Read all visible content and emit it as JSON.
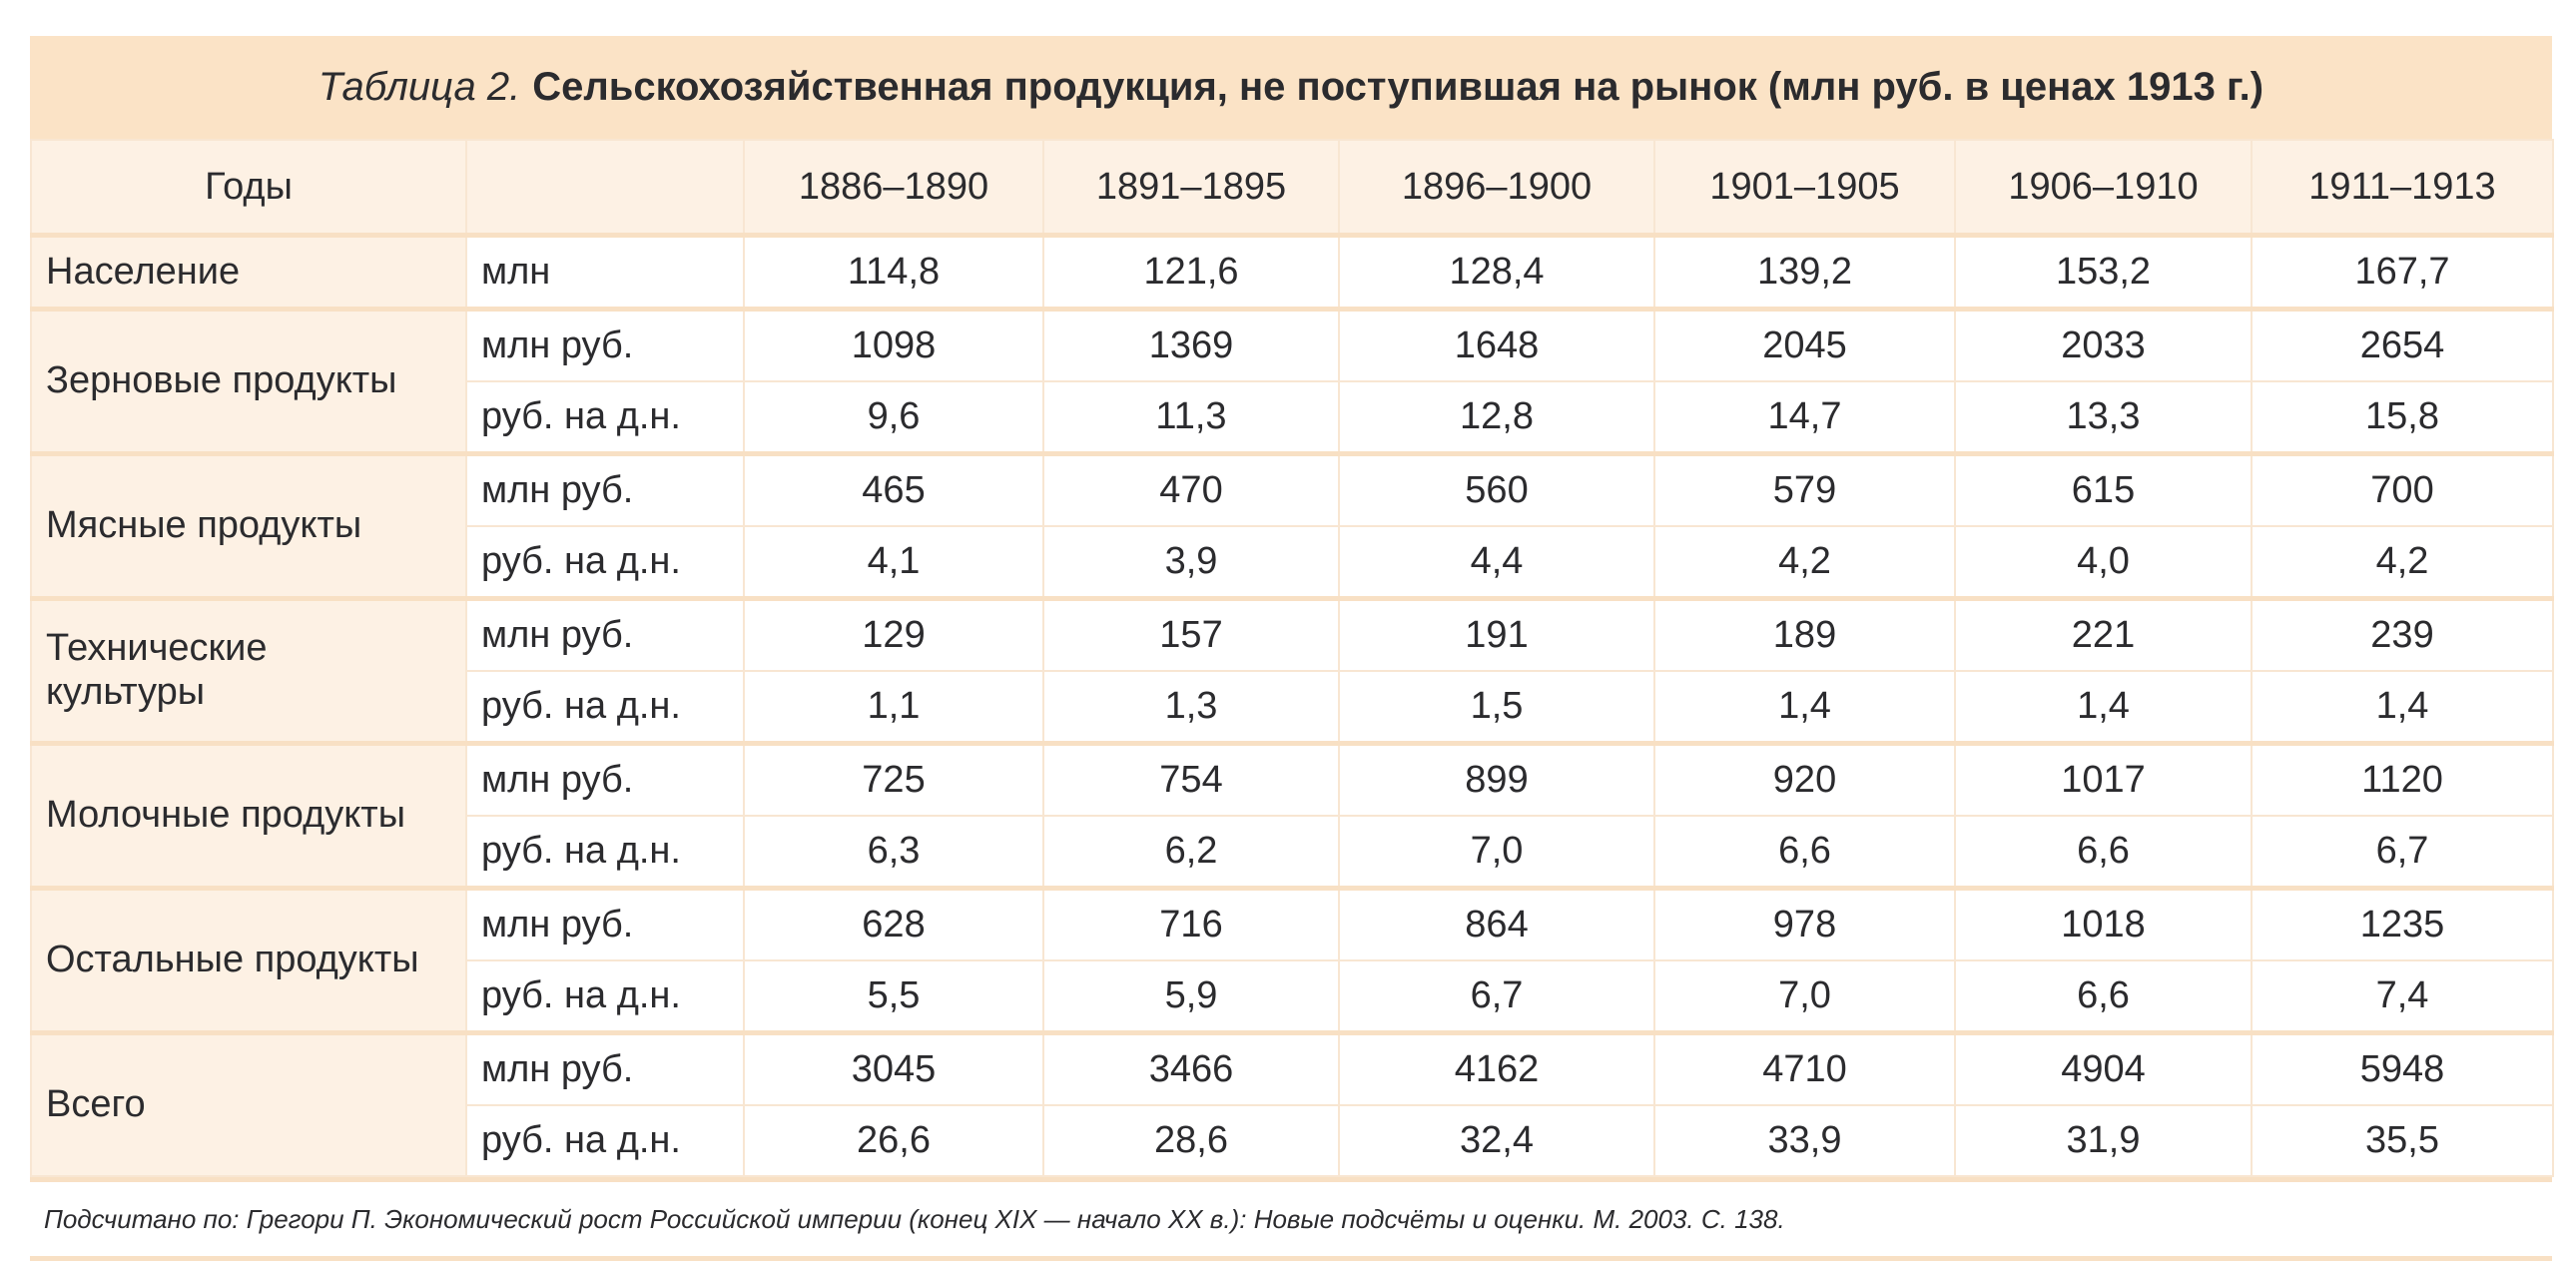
{
  "title": {
    "prefix": "Таблица 2.",
    "text": "Сельскохозяйственная продукция, не поступившая на рынок (млн руб. в ценах 1913 г.)"
  },
  "header": {
    "label": "Годы",
    "unit": "",
    "periods": [
      "1886–1890",
      "1891–1895",
      "1896–1900",
      "1901–1905",
      "1906–1910",
      "1911–1913"
    ]
  },
  "rows": [
    {
      "label": "Население",
      "lines": [
        {
          "unit": "млн",
          "values": [
            "114,8",
            "121,6",
            "128,4",
            "139,2",
            "153,2",
            "167,7"
          ]
        }
      ]
    },
    {
      "label": "Зерновые продукты",
      "lines": [
        {
          "unit": "млн руб.",
          "values": [
            "1098",
            "1369",
            "1648",
            "2045",
            "2033",
            "2654"
          ]
        },
        {
          "unit": "руб. на д.н.",
          "values": [
            "9,6",
            "11,3",
            "12,8",
            "14,7",
            "13,3",
            "15,8"
          ]
        }
      ]
    },
    {
      "label": "Мясные продукты",
      "lines": [
        {
          "unit": "млн руб.",
          "values": [
            "465",
            "470",
            "560",
            "579",
            "615",
            "700"
          ]
        },
        {
          "unit": "руб. на д.н.",
          "values": [
            "4,1",
            "3,9",
            "4,4",
            "4,2",
            "4,0",
            "4,2"
          ]
        }
      ]
    },
    {
      "label": "Технические культуры",
      "lines": [
        {
          "unit": "млн руб.",
          "values": [
            "129",
            "157",
            "191",
            "189",
            "221",
            "239"
          ]
        },
        {
          "unit": "руб. на д.н.",
          "values": [
            "1,1",
            "1,3",
            "1,5",
            "1,4",
            "1,4",
            "1,4"
          ]
        }
      ]
    },
    {
      "label": "Молочные продукты",
      "lines": [
        {
          "unit": "млн руб.",
          "values": [
            "725",
            "754",
            "899",
            "920",
            "1017",
            "1120"
          ]
        },
        {
          "unit": "руб. на д.н.",
          "values": [
            "6,3",
            "6,2",
            "7,0",
            "6,6",
            "6,6",
            "6,7"
          ]
        }
      ]
    },
    {
      "label": "Остальные продукты",
      "lines": [
        {
          "unit": "млн руб.",
          "values": [
            "628",
            "716",
            "864",
            "978",
            "1018",
            "1235"
          ]
        },
        {
          "unit": "руб. на д.н.",
          "values": [
            "5,5",
            "5,9",
            "6,7",
            "7,0",
            "6,6",
            "7,4"
          ]
        }
      ]
    },
    {
      "label": "Всего",
      "lines": [
        {
          "unit": "млн руб.",
          "values": [
            "3045",
            "3466",
            "4162",
            "4710",
            "4904",
            "5948"
          ]
        },
        {
          "unit": "руб. на д.н.",
          "values": [
            "26,6",
            "28,6",
            "32,4",
            "33,9",
            "31,9",
            "35,5"
          ]
        }
      ]
    }
  ],
  "footnote": "Подсчитано по: Грегори П. Экономический рост Российской империи (конец XIX — начало XX в.): Новые подсчёты и оценки. М. 2003. С. 138.",
  "colors": {
    "title_bg": "#fbe3c6",
    "label_bg": "#fdf1e4",
    "border": "#f8e0c4"
  }
}
